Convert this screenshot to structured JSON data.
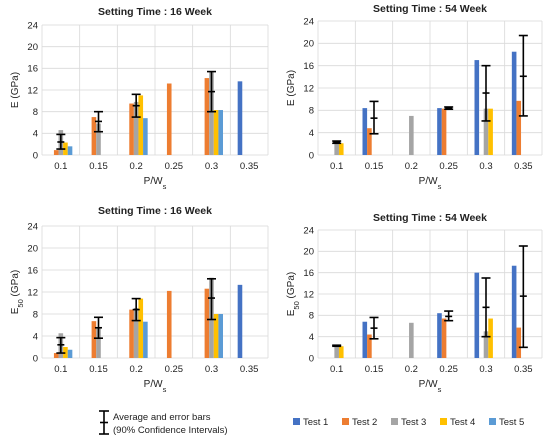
{
  "colors": {
    "Test 1": "#4472C4",
    "Test 2": "#ED7D31",
    "Test 3": "#A5A5A5",
    "Test 4": "#FFC000",
    "Test 5": "#5B9BD5",
    "grid": "#D9D9D9",
    "errorbar": "#000000"
  },
  "legend": {
    "errorbar_line1": "Average and error bars",
    "errorbar_line2": "(90% Confidence Intervals)",
    "series": [
      "Test 1",
      "Test 2",
      "Test 3",
      "Test 4",
      "Test 5"
    ]
  },
  "chart_data": [
    {
      "type": "bar",
      "title": "Setting Time : 16 Week",
      "ylabel": "E (GPa)",
      "xlabel": "P/Ws",
      "ylim": [
        0,
        24
      ],
      "yticks": [
        0,
        4,
        8,
        12,
        16,
        20,
        24
      ],
      "grid": true,
      "categories": [
        "0.1",
        "0.15",
        "0.2",
        "0.25",
        "0.3",
        "0.35"
      ],
      "series": [
        {
          "name": "Test 1",
          "values": [
            null,
            null,
            null,
            null,
            null,
            13.6
          ]
        },
        {
          "name": "Test 2",
          "values": [
            0.9,
            7.0,
            9.5,
            13.2,
            14.2,
            null
          ]
        },
        {
          "name": "Test 3",
          "values": [
            4.6,
            5.8,
            9.8,
            null,
            15.3,
            null
          ]
        },
        {
          "name": "Test 4",
          "values": [
            2.3,
            null,
            11.0,
            null,
            8.3,
            null
          ]
        },
        {
          "name": "Test 5",
          "values": [
            1.6,
            null,
            6.8,
            null,
            8.3,
            null
          ]
        }
      ],
      "error_bars": [
        {
          "category": "0.1",
          "mean": 2.4,
          "low": 1.1,
          "high": 3.8
        },
        {
          "category": "0.15",
          "mean": 6.2,
          "low": 4.3,
          "high": 8.0
        },
        {
          "category": "0.2",
          "mean": 9.1,
          "low": 7.0,
          "high": 11.2
        },
        {
          "category": "0.3",
          "mean": 11.7,
          "low": 8.0,
          "high": 15.4
        }
      ]
    },
    {
      "type": "bar",
      "title": "Setting Time : 54 Week",
      "ylabel": "E (GPa)",
      "xlabel": "P/Ws",
      "ylim": [
        0,
        24
      ],
      "yticks": [
        0,
        4,
        8,
        12,
        16,
        20,
        24
      ],
      "grid": true,
      "categories": [
        "0.1",
        "0.15",
        "0.2",
        "0.25",
        "0.3",
        "0.35"
      ],
      "series": [
        {
          "name": "Test 1",
          "values": [
            null,
            8.4,
            null,
            8.4,
            17.0,
            18.5
          ]
        },
        {
          "name": "Test 2",
          "values": [
            null,
            4.8,
            null,
            8.3,
            null,
            9.7
          ]
        },
        {
          "name": "Test 3",
          "values": [
            2.4,
            null,
            7.0,
            null,
            8.3,
            null
          ]
        },
        {
          "name": "Test 4",
          "values": [
            2.1,
            null,
            null,
            null,
            8.3,
            null
          ]
        },
        {
          "name": "Test 5",
          "values": [
            null,
            null,
            null,
            null,
            null,
            null
          ]
        }
      ],
      "error_bars": [
        {
          "category": "0.1",
          "mean": 2.3,
          "low": 2.1,
          "high": 2.5
        },
        {
          "category": "0.15",
          "mean": 6.6,
          "low": 3.8,
          "high": 9.6
        },
        {
          "category": "0.25",
          "mean": 8.4,
          "low": 8.2,
          "high": 8.6
        },
        {
          "category": "0.3",
          "mean": 11.1,
          "low": 6.1,
          "high": 16.0
        },
        {
          "category": "0.35",
          "mean": 14.1,
          "low": 7.0,
          "high": 21.4
        }
      ]
    },
    {
      "type": "bar",
      "title": "Setting Time : 16 Week",
      "ylabel": "E50 (GPa)",
      "xlabel": "P/Ws",
      "ylim": [
        0,
        24
      ],
      "yticks": [
        0,
        4,
        8,
        12,
        16,
        20,
        24
      ],
      "grid": true,
      "categories": [
        "0.1",
        "0.15",
        "0.2",
        "0.25",
        "0.3",
        "0.35"
      ],
      "series": [
        {
          "name": "Test 1",
          "values": [
            null,
            null,
            null,
            null,
            null,
            13.3
          ]
        },
        {
          "name": "Test 2",
          "values": [
            0.9,
            6.7,
            8.8,
            12.2,
            12.6,
            null
          ]
        },
        {
          "name": "Test 3",
          "values": [
            4.5,
            5.5,
            9.1,
            null,
            14.6,
            null
          ]
        },
        {
          "name": "Test 4",
          "values": [
            2.0,
            null,
            10.8,
            null,
            8.0,
            null
          ]
        },
        {
          "name": "Test 5",
          "values": [
            1.5,
            null,
            6.6,
            null,
            8.0,
            null
          ]
        }
      ],
      "error_bars": [
        {
          "category": "0.1",
          "mean": 2.4,
          "low": 0.9,
          "high": 3.7
        },
        {
          "category": "0.15",
          "mean": 5.5,
          "low": 3.6,
          "high": 7.4
        },
        {
          "category": "0.2",
          "mean": 8.8,
          "low": 6.8,
          "high": 10.8
        },
        {
          "category": "0.3",
          "mean": 10.9,
          "low": 7.0,
          "high": 14.4
        }
      ]
    },
    {
      "type": "bar",
      "title": "Setting Time : 54 Week",
      "ylabel": "E50 (GPa)",
      "xlabel": "P/Ws",
      "ylim": [
        0,
        24
      ],
      "yticks": [
        0,
        4,
        8,
        12,
        16,
        20,
        24
      ],
      "grid": true,
      "categories": [
        "0.1",
        "0.15",
        "0.2",
        "0.25",
        "0.3",
        "0.35"
      ],
      "series": [
        {
          "name": "Test 1",
          "values": [
            null,
            6.8,
            null,
            8.4,
            16.0,
            17.3
          ]
        },
        {
          "name": "Test 2",
          "values": [
            null,
            4.4,
            null,
            7.4,
            null,
            5.7
          ]
        },
        {
          "name": "Test 3",
          "values": [
            2.3,
            null,
            6.6,
            null,
            5.0,
            null
          ]
        },
        {
          "name": "Test 4",
          "values": [
            2.2,
            null,
            null,
            null,
            7.4,
            null
          ]
        },
        {
          "name": "Test 5",
          "values": [
            null,
            null,
            null,
            null,
            null,
            null
          ]
        }
      ],
      "error_bars": [
        {
          "category": "0.1",
          "mean": 2.3,
          "low": 2.2,
          "high": 2.4
        },
        {
          "category": "0.15",
          "mean": 5.6,
          "low": 3.6,
          "high": 7.6
        },
        {
          "category": "0.25",
          "mean": 7.8,
          "low": 7.0,
          "high": 8.8
        },
        {
          "category": "0.3",
          "mean": 9.5,
          "low": 4.0,
          "high": 15.0
        },
        {
          "category": "0.35",
          "mean": 11.6,
          "low": 2.0,
          "high": 21.0
        }
      ]
    }
  ]
}
